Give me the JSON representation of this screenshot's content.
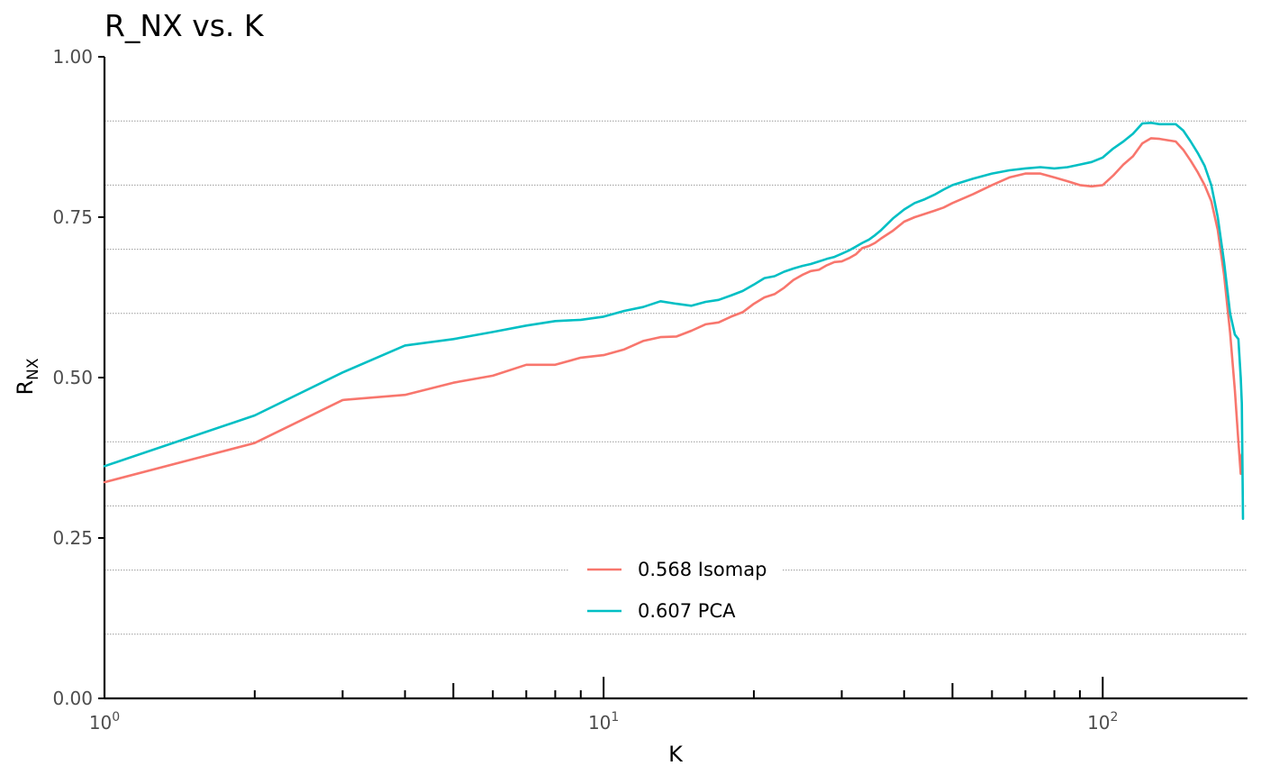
{
  "chart_data": {
    "type": "line",
    "title": "R_NX vs. K",
    "xlabel": "K",
    "ylabel_base": "R",
    "ylabel_sub": "NX",
    "x_scale": "log10",
    "xlim": [
      1,
      195
    ],
    "ylim": [
      0,
      1
    ],
    "x_ticks": [
      {
        "value": 1,
        "base": "10",
        "exp": "0"
      },
      {
        "value": 10,
        "base": "10",
        "exp": "1"
      },
      {
        "value": 100,
        "base": "10",
        "exp": "2"
      }
    ],
    "y_ticks": [
      {
        "value": 0,
        "label": "0.00"
      },
      {
        "value": 0.25,
        "label": "0.25"
      },
      {
        "value": 0.5,
        "label": "0.50"
      },
      {
        "value": 0.75,
        "label": "0.75"
      },
      {
        "value": 1,
        "label": "1.00"
      }
    ],
    "minor_gridlines_y": [
      0.1,
      0.2,
      0.3,
      0.4,
      0.6,
      0.7,
      0.8,
      0.9
    ],
    "grid": "dotted horizontal",
    "legend_position": "bottom-center",
    "series": [
      {
        "name": "0.568 Isomap",
        "color": "#F8766D",
        "points": [
          [
            1,
            0.337
          ],
          [
            2,
            0.398
          ],
          [
            3,
            0.465
          ],
          [
            4,
            0.473
          ],
          [
            5,
            0.492
          ],
          [
            6,
            0.503
          ],
          [
            7,
            0.52
          ],
          [
            8,
            0.52
          ],
          [
            9,
            0.531
          ],
          [
            10,
            0.535
          ],
          [
            11,
            0.544
          ],
          [
            12,
            0.557
          ],
          [
            13,
            0.563
          ],
          [
            14,
            0.564
          ],
          [
            15,
            0.573
          ],
          [
            16,
            0.583
          ],
          [
            17,
            0.586
          ],
          [
            18,
            0.595
          ],
          [
            19,
            0.602
          ],
          [
            20,
            0.615
          ],
          [
            21,
            0.625
          ],
          [
            22,
            0.63
          ],
          [
            23,
            0.64
          ],
          [
            24,
            0.652
          ],
          [
            25,
            0.66
          ],
          [
            26,
            0.666
          ],
          [
            27,
            0.668
          ],
          [
            28,
            0.675
          ],
          [
            29,
            0.68
          ],
          [
            30,
            0.681
          ],
          [
            31,
            0.686
          ],
          [
            32,
            0.692
          ],
          [
            33,
            0.702
          ],
          [
            34,
            0.705
          ],
          [
            35,
            0.71
          ],
          [
            36,
            0.717
          ],
          [
            38,
            0.729
          ],
          [
            40,
            0.743
          ],
          [
            42,
            0.75
          ],
          [
            44,
            0.755
          ],
          [
            46,
            0.76
          ],
          [
            48,
            0.765
          ],
          [
            50,
            0.772
          ],
          [
            55,
            0.786
          ],
          [
            60,
            0.8
          ],
          [
            65,
            0.812
          ],
          [
            70,
            0.818
          ],
          [
            75,
            0.818
          ],
          [
            80,
            0.812
          ],
          [
            85,
            0.806
          ],
          [
            90,
            0.8
          ],
          [
            95,
            0.798
          ],
          [
            100,
            0.8
          ],
          [
            105,
            0.815
          ],
          [
            110,
            0.832
          ],
          [
            115,
            0.845
          ],
          [
            120,
            0.865
          ],
          [
            125,
            0.873
          ],
          [
            130,
            0.872
          ],
          [
            135,
            0.87
          ],
          [
            140,
            0.868
          ],
          [
            145,
            0.855
          ],
          [
            150,
            0.838
          ],
          [
            155,
            0.82
          ],
          [
            160,
            0.8
          ],
          [
            165,
            0.775
          ],
          [
            170,
            0.73
          ],
          [
            175,
            0.66
          ],
          [
            180,
            0.57
          ],
          [
            184,
            0.48
          ],
          [
            187,
            0.4
          ],
          [
            189,
            0.35
          ],
          [
            190,
            0.38
          ]
        ]
      },
      {
        "name": "0.607 PCA",
        "color": "#00BFC4",
        "points": [
          [
            1,
            0.362
          ],
          [
            2,
            0.441
          ],
          [
            3,
            0.508
          ],
          [
            4,
            0.55
          ],
          [
            5,
            0.56
          ],
          [
            6,
            0.571
          ],
          [
            7,
            0.581
          ],
          [
            8,
            0.588
          ],
          [
            9,
            0.59
          ],
          [
            10,
            0.595
          ],
          [
            11,
            0.604
          ],
          [
            12,
            0.61
          ],
          [
            13,
            0.619
          ],
          [
            14,
            0.615
          ],
          [
            15,
            0.612
          ],
          [
            16,
            0.618
          ],
          [
            17,
            0.621
          ],
          [
            18,
            0.628
          ],
          [
            19,
            0.635
          ],
          [
            20,
            0.645
          ],
          [
            21,
            0.655
          ],
          [
            22,
            0.658
          ],
          [
            23,
            0.665
          ],
          [
            24,
            0.67
          ],
          [
            25,
            0.674
          ],
          [
            26,
            0.677
          ],
          [
            27,
            0.681
          ],
          [
            28,
            0.685
          ],
          [
            29,
            0.688
          ],
          [
            30,
            0.693
          ],
          [
            31,
            0.698
          ],
          [
            32,
            0.704
          ],
          [
            33,
            0.71
          ],
          [
            34,
            0.715
          ],
          [
            35,
            0.722
          ],
          [
            36,
            0.73
          ],
          [
            38,
            0.748
          ],
          [
            40,
            0.762
          ],
          [
            42,
            0.772
          ],
          [
            44,
            0.778
          ],
          [
            46,
            0.785
          ],
          [
            48,
            0.793
          ],
          [
            50,
            0.8
          ],
          [
            55,
            0.81
          ],
          [
            60,
            0.818
          ],
          [
            65,
            0.823
          ],
          [
            70,
            0.826
          ],
          [
            75,
            0.828
          ],
          [
            80,
            0.826
          ],
          [
            85,
            0.828
          ],
          [
            90,
            0.832
          ],
          [
            95,
            0.836
          ],
          [
            100,
            0.843
          ],
          [
            105,
            0.857
          ],
          [
            110,
            0.868
          ],
          [
            115,
            0.88
          ],
          [
            120,
            0.896
          ],
          [
            125,
            0.897
          ],
          [
            130,
            0.895
          ],
          [
            135,
            0.895
          ],
          [
            140,
            0.895
          ],
          [
            145,
            0.885
          ],
          [
            150,
            0.868
          ],
          [
            155,
            0.85
          ],
          [
            160,
            0.83
          ],
          [
            165,
            0.8
          ],
          [
            170,
            0.75
          ],
          [
            175,
            0.68
          ],
          [
            180,
            0.6
          ],
          [
            184,
            0.567
          ],
          [
            187,
            0.56
          ],
          [
            189,
            0.5
          ],
          [
            190,
            0.46
          ],
          [
            191,
            0.28
          ]
        ]
      }
    ]
  }
}
